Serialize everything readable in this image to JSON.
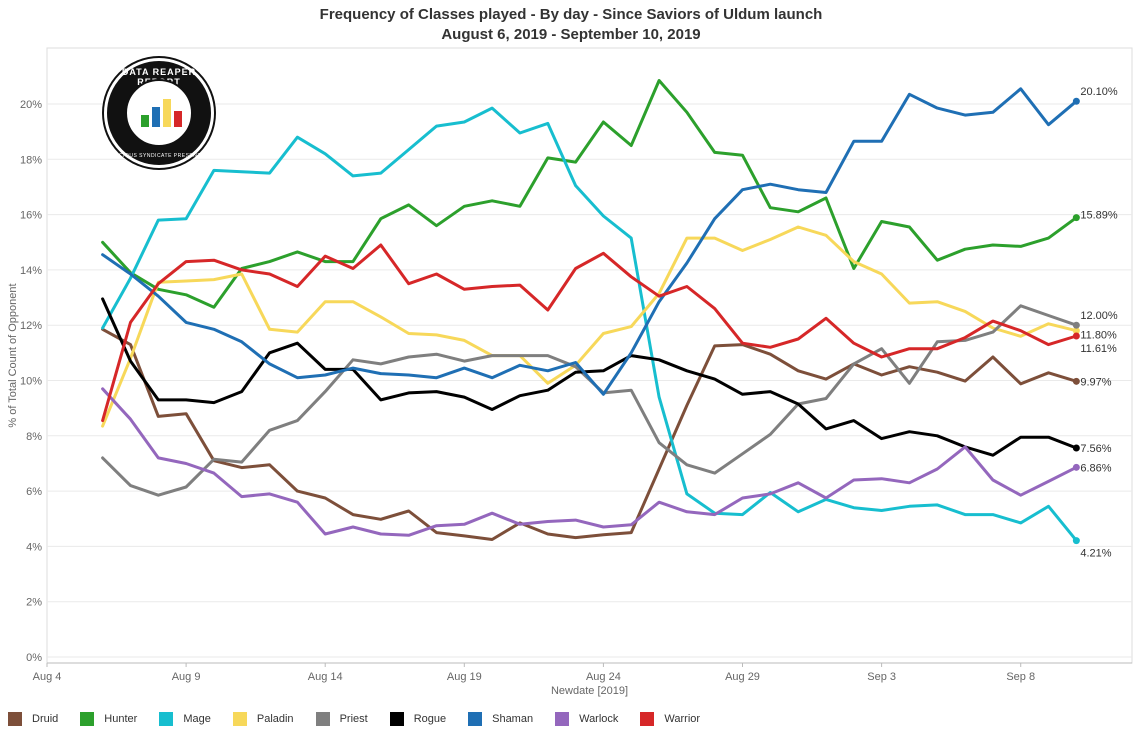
{
  "title": "Frequency of Classes played - By day - Since Saviors of Uldum launch",
  "subtitle": "August 6, 2019 - September 10, 2019",
  "logo": {
    "text": "DATA REAPER REPORT",
    "subtext": "VICIOUS SYNDICATE PRESENTS"
  },
  "chart_data": {
    "type": "line",
    "title": "Frequency of Classes played - By day - Since Saviors of Uldum launch",
    "subtitle": "August 6, 2019 - September 10, 2019",
    "xlabel": "Newdate [2019]",
    "ylabel": "% of Total Count of Opponent",
    "x_start": "2019-08-06",
    "x_end": "2019-09-10",
    "x_domain": [
      "2019-08-04",
      "2019-09-12"
    ],
    "ylim": [
      0,
      21
    ],
    "y_ticks": [
      "0%",
      "2%",
      "4%",
      "6%",
      "8%",
      "10%",
      "12%",
      "14%",
      "16%",
      "18%",
      "20%"
    ],
    "x_ticks": [
      {
        "date": "2019-08-04",
        "label": "Aug 4"
      },
      {
        "date": "2019-08-09",
        "label": "Aug 9"
      },
      {
        "date": "2019-08-14",
        "label": "Aug 14"
      },
      {
        "date": "2019-08-19",
        "label": "Aug 19"
      },
      {
        "date": "2019-08-24",
        "label": "Aug 24"
      },
      {
        "date": "2019-08-29",
        "label": "Aug 29"
      },
      {
        "date": "2019-09-03",
        "label": "Sep 3"
      },
      {
        "date": "2019-09-08",
        "label": "Sep 8"
      }
    ],
    "grid": "horizontal",
    "legend_position": "bottom",
    "series": [
      {
        "name": "Druid",
        "color": "#7d4f3a",
        "end_label": "9.97%",
        "values": [
          11.85,
          11.3,
          8.7,
          8.8,
          7.1,
          6.85,
          6.95,
          6.0,
          5.75,
          5.15,
          4.98,
          5.28,
          4.5,
          4.38,
          4.25,
          4.85,
          4.45,
          4.32,
          4.42,
          4.5,
          6.8,
          9.1,
          11.25,
          11.3,
          10.95,
          10.35,
          10.05,
          10.6,
          10.2,
          10.5,
          10.3,
          9.98,
          10.85,
          9.88,
          10.28,
          9.97
        ]
      },
      {
        "name": "Hunter",
        "color": "#2ca02c",
        "end_label": "15.89%",
        "values": [
          15.0,
          13.9,
          13.3,
          13.1,
          12.65,
          14.05,
          14.3,
          14.65,
          14.3,
          14.3,
          15.85,
          16.35,
          15.6,
          16.3,
          16.5,
          16.3,
          18.05,
          17.9,
          19.35,
          18.5,
          20.85,
          19.7,
          18.25,
          18.15,
          16.25,
          16.1,
          16.6,
          14.05,
          15.75,
          15.55,
          14.35,
          14.75,
          14.9,
          14.85,
          15.15,
          15.89
        ]
      },
      {
        "name": "Mage",
        "color": "#17becf",
        "end_label": "4.21%",
        "values": [
          11.9,
          13.7,
          15.8,
          15.85,
          17.6,
          17.55,
          17.5,
          18.8,
          18.2,
          17.4,
          17.5,
          18.35,
          19.2,
          19.35,
          19.85,
          18.95,
          19.3,
          17.05,
          15.95,
          15.15,
          9.4,
          5.9,
          5.2,
          5.15,
          5.95,
          5.25,
          5.7,
          5.4,
          5.3,
          5.45,
          5.5,
          5.15,
          5.15,
          4.85,
          5.45,
          4.21
        ]
      },
      {
        "name": "Paladin",
        "color": "#f7d85a",
        "end_label": "11.80%",
        "values": [
          8.35,
          10.8,
          13.55,
          13.6,
          13.65,
          13.85,
          11.85,
          11.75,
          12.85,
          12.85,
          12.3,
          11.7,
          11.65,
          11.45,
          10.9,
          10.9,
          9.9,
          10.55,
          11.7,
          11.95,
          13.15,
          15.15,
          15.15,
          14.7,
          15.1,
          15.55,
          15.25,
          14.3,
          13.85,
          12.8,
          12.85,
          12.5,
          11.9,
          11.6,
          12.05,
          11.8
        ]
      },
      {
        "name": "Priest",
        "color": "#7f7f7f",
        "end_label": "12.00%",
        "values": [
          7.2,
          6.2,
          5.85,
          6.15,
          7.15,
          7.05,
          8.2,
          8.55,
          9.6,
          10.75,
          10.6,
          10.85,
          10.95,
          10.7,
          10.9,
          10.9,
          10.9,
          10.5,
          9.55,
          9.65,
          7.75,
          6.95,
          6.65,
          7.35,
          8.05,
          9.15,
          9.35,
          10.6,
          11.15,
          9.9,
          11.4,
          11.45,
          11.75,
          12.7,
          12.35,
          12.0
        ]
      },
      {
        "name": "Rogue",
        "color": "#000000",
        "end_label": "7.56%",
        "values": [
          12.95,
          10.7,
          9.3,
          9.3,
          9.2,
          9.6,
          11.0,
          11.35,
          10.4,
          10.4,
          9.3,
          9.55,
          9.6,
          9.4,
          8.95,
          9.45,
          9.65,
          10.3,
          10.35,
          10.9,
          10.75,
          10.35,
          10.05,
          9.5,
          9.6,
          9.15,
          8.25,
          8.55,
          7.9,
          8.15,
          8.0,
          7.6,
          7.3,
          7.95,
          7.95,
          7.56
        ]
      },
      {
        "name": "Shaman",
        "color": "#1f6fb4",
        "end_label": "20.10%",
        "values": [
          14.55,
          13.85,
          13.05,
          12.1,
          11.85,
          11.4,
          10.6,
          10.1,
          10.2,
          10.45,
          10.25,
          10.2,
          10.1,
          10.45,
          10.1,
          10.55,
          10.35,
          10.65,
          9.5,
          11.0,
          12.85,
          14.25,
          15.85,
          16.9,
          17.1,
          16.9,
          16.8,
          18.65,
          18.65,
          20.35,
          19.85,
          19.6,
          19.7,
          20.55,
          19.25,
          20.1
        ]
      },
      {
        "name": "Warlock",
        "color": "#9467bd",
        "end_label": "6.86%",
        "values": [
          9.7,
          8.6,
          7.2,
          7.0,
          6.65,
          5.8,
          5.9,
          5.6,
          4.45,
          4.7,
          4.45,
          4.4,
          4.75,
          4.8,
          5.2,
          4.8,
          4.9,
          4.95,
          4.7,
          4.78,
          5.6,
          5.25,
          5.15,
          5.75,
          5.9,
          6.3,
          5.75,
          6.4,
          6.45,
          6.3,
          6.8,
          7.6,
          6.4,
          5.85,
          6.35,
          6.86
        ]
      },
      {
        "name": "Warrior",
        "color": "#d62728",
        "end_label": "11.61%",
        "values": [
          8.55,
          12.1,
          13.5,
          14.3,
          14.35,
          14.0,
          13.85,
          13.4,
          14.5,
          14.05,
          14.9,
          13.5,
          13.85,
          13.3,
          13.4,
          13.45,
          12.55,
          14.05,
          14.6,
          13.75,
          13.05,
          13.4,
          12.6,
          11.35,
          11.2,
          11.5,
          12.25,
          11.35,
          10.85,
          11.15,
          11.15,
          11.55,
          12.15,
          11.8,
          11.3,
          11.61
        ]
      }
    ]
  }
}
